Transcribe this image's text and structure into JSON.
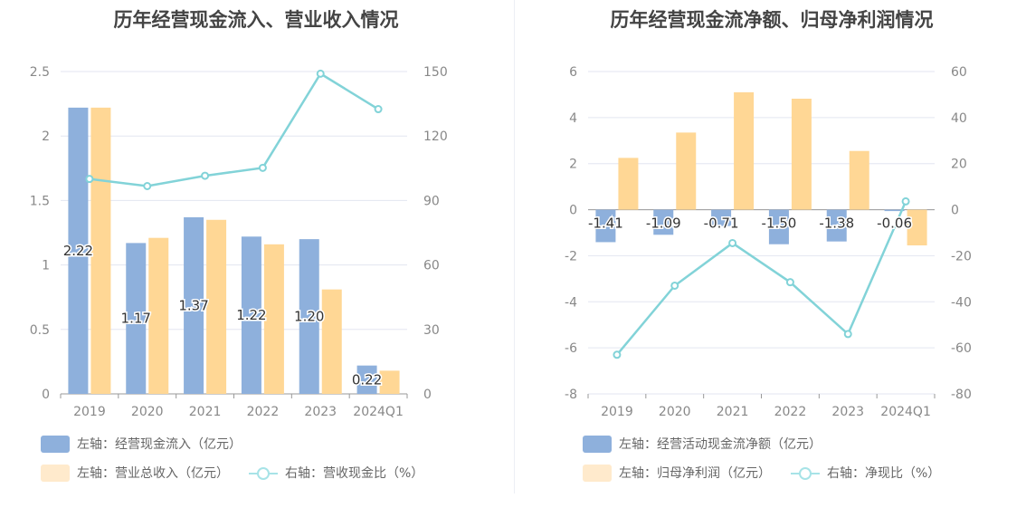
{
  "colors": {
    "bar_primary": "#8eb0dc",
    "bar_secondary": "#ffd795",
    "line": "#82d3d8",
    "grid": "#e3e6f0",
    "axis_text": "#888888"
  },
  "chart_data": [
    {
      "type": "bar",
      "title": "历年经营现金流入、营业收入情况",
      "categories": [
        "2019",
        "2020",
        "2021",
        "2022",
        "2023",
        "2024Q1"
      ],
      "left_axis": {
        "ylim": [
          0,
          2.5
        ],
        "ticks": [
          "0",
          "0.5",
          "1",
          "1.5",
          "2",
          "2.5"
        ]
      },
      "right_axis": {
        "ylim": [
          0,
          150
        ],
        "ticks": [
          "0",
          "30",
          "60",
          "90",
          "120",
          "150"
        ]
      },
      "grid": true,
      "legend_position": "bottom-left",
      "series": [
        {
          "name": "左轴：经营现金流入（亿元）",
          "type": "bar",
          "axis": "left",
          "values": [
            2.22,
            1.17,
            1.37,
            1.22,
            1.2,
            0.22
          ],
          "labels": [
            "2.22",
            "1.17",
            "1.37",
            "1.22",
            "1.20",
            "0.22"
          ]
        },
        {
          "name": "左轴：营业总收入（亿元）",
          "type": "bar",
          "axis": "left",
          "values": [
            2.22,
            1.21,
            1.35,
            1.16,
            0.81,
            0.18
          ]
        },
        {
          "name": "右轴：营收现金比（%）",
          "type": "line",
          "axis": "right",
          "values": [
            100,
            96.7,
            101.5,
            105.2,
            149,
            132.5
          ]
        }
      ]
    },
    {
      "type": "bar",
      "title": "历年经营现金流净额、归母净利润情况",
      "categories": [
        "2019",
        "2020",
        "2021",
        "2022",
        "2023",
        "2024Q1"
      ],
      "left_axis": {
        "ylim": [
          -8,
          6
        ],
        "ticks": [
          "-8",
          "-6",
          "-4",
          "-2",
          "0",
          "2",
          "4",
          "6"
        ]
      },
      "right_axis": {
        "ylim": [
          -80,
          60
        ],
        "ticks": [
          "-80",
          "-60",
          "-40",
          "-20",
          "0",
          "20",
          "40",
          "60"
        ]
      },
      "grid": true,
      "legend_position": "bottom-left",
      "series": [
        {
          "name": "左轴：经营活动现金流净额（亿元）",
          "type": "bar",
          "axis": "left",
          "values": [
            -1.41,
            -1.09,
            -0.71,
            -1.5,
            -1.38,
            -0.06
          ],
          "labels": [
            "-1.41",
            "-1.09",
            "-0.71",
            "-1.50",
            "-1.38",
            "-0.06"
          ]
        },
        {
          "name": "左轴：归母净利润（亿元）",
          "type": "bar",
          "axis": "left",
          "values": [
            2.25,
            3.35,
            5.1,
            4.82,
            2.55,
            -1.55
          ]
        },
        {
          "name": "右轴：净现比（%）",
          "type": "line",
          "axis": "right",
          "values": [
            -63,
            -33,
            -14.5,
            -31.5,
            -54,
            3.6
          ]
        }
      ]
    }
  ]
}
